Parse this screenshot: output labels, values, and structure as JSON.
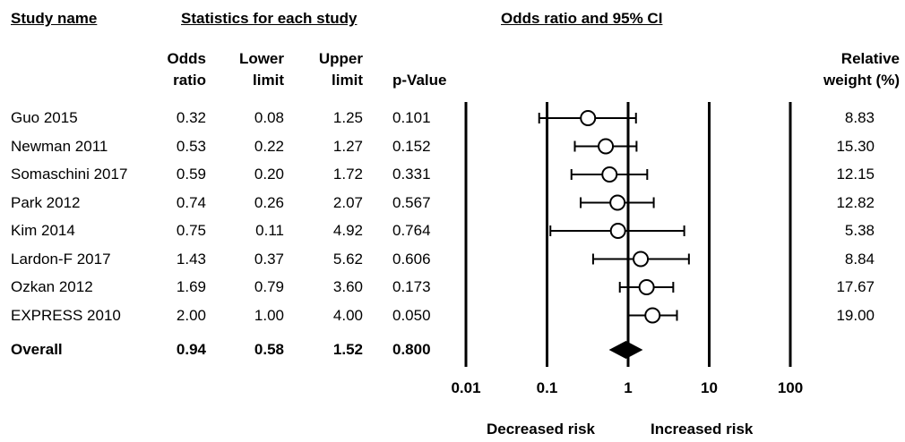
{
  "headers": {
    "study_name": "Study name",
    "stats_group": "Statistics for each study",
    "plot_title": "Odds ratio and 95% CI",
    "odds_ratio_1": "Odds",
    "odds_ratio_2": "ratio",
    "lower_1": "Lower",
    "lower_2": "limit",
    "upper_1": "Upper",
    "upper_2": "limit",
    "pvalue": "p-Value",
    "weight_1": "Relative",
    "weight_2": "weight (%)"
  },
  "chart_data": {
    "type": "forest",
    "x_scale": "log",
    "x_ticks": [
      "0.01",
      "0.1",
      "1",
      "10",
      "100"
    ],
    "x_tick_values": [
      0.01,
      0.1,
      1,
      10,
      100
    ],
    "xlim": [
      0.01,
      100
    ],
    "studies": [
      {
        "name": "Guo 2015",
        "or": "0.32",
        "lower": "0.08",
        "upper": "1.25",
        "p": "0.101",
        "weight": "8.83",
        "or_v": 0.32,
        "lower_v": 0.08,
        "upper_v": 1.25
      },
      {
        "name": "Newman 2011",
        "or": "0.53",
        "lower": "0.22",
        "upper": "1.27",
        "p": "0.152",
        "weight": "15.30",
        "or_v": 0.53,
        "lower_v": 0.22,
        "upper_v": 1.27
      },
      {
        "name": "Somaschini 2017",
        "or": "0.59",
        "lower": "0.20",
        "upper": "1.72",
        "p": "0.331",
        "weight": "12.15",
        "or_v": 0.59,
        "lower_v": 0.2,
        "upper_v": 1.72
      },
      {
        "name": "Park 2012",
        "or": "0.74",
        "lower": "0.26",
        "upper": "2.07",
        "p": "0.567",
        "weight": "12.82",
        "or_v": 0.74,
        "lower_v": 0.26,
        "upper_v": 2.07
      },
      {
        "name": "Kim 2014",
        "or": "0.75",
        "lower": "0.11",
        "upper": "4.92",
        "p": "0.764",
        "weight": "5.38",
        "or_v": 0.75,
        "lower_v": 0.11,
        "upper_v": 4.92
      },
      {
        "name": "Lardon-F 2017",
        "or": "1.43",
        "lower": "0.37",
        "upper": "5.62",
        "p": "0.606",
        "weight": "8.84",
        "or_v": 1.43,
        "lower_v": 0.37,
        "upper_v": 5.62
      },
      {
        "name": "Ozkan 2012",
        "or": "1.69",
        "lower": "0.79",
        "upper": "3.60",
        "p": "0.173",
        "weight": "17.67",
        "or_v": 1.69,
        "lower_v": 0.79,
        "upper_v": 3.6
      },
      {
        "name": "EXPRESS 2010",
        "or": "2.00",
        "lower": "1.00",
        "upper": "4.00",
        "p": "0.050",
        "weight": "19.00",
        "or_v": 2.0,
        "lower_v": 1.0,
        "upper_v": 4.0
      }
    ],
    "overall": {
      "name": "Overall",
      "or": "0.94",
      "lower": "0.58",
      "upper": "1.52",
      "p": "0.800",
      "or_v": 0.94,
      "lower_v": 0.58,
      "upper_v": 1.52
    },
    "xlabel_left": "Decreased risk",
    "xlabel_right": "Increased risk"
  }
}
